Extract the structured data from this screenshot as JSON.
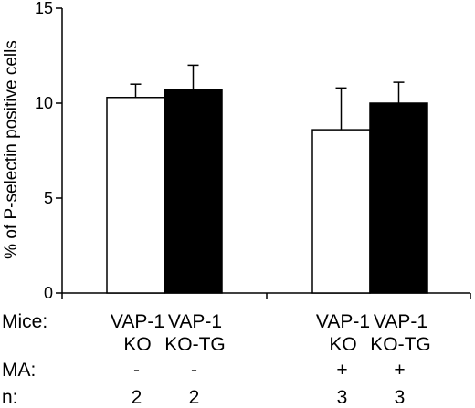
{
  "chart_data": {
    "type": "bar",
    "ylabel": "% of P-selectin positive cells",
    "ylim": [
      0,
      15
    ],
    "yticks": [
      "0",
      "5",
      "10",
      "15"
    ],
    "grid": false,
    "bars": [
      {
        "group": 1,
        "mice": [
          "VAP-1",
          "KO"
        ],
        "ma": "-",
        "n": "2",
        "value": 10.3,
        "error": 0.7,
        "fill": "#ffffff"
      },
      {
        "group": 1,
        "mice": [
          "VAP-1",
          "KO-TG"
        ],
        "ma": "-",
        "n": "2",
        "value": 10.7,
        "error": 1.3,
        "fill": "#000000"
      },
      {
        "group": 2,
        "mice": [
          "VAP-1",
          "KO"
        ],
        "ma": "+",
        "n": "3",
        "value": 8.6,
        "error": 2.2,
        "fill": "#ffffff"
      },
      {
        "group": 2,
        "mice": [
          "VAP-1",
          "KO-TG"
        ],
        "ma": "+",
        "n": "3",
        "value": 10.0,
        "error": 1.1,
        "fill": "#000000"
      }
    ],
    "row_labels": {
      "mice": "Mice:",
      "ma": "MA:",
      "n": "n:"
    }
  }
}
